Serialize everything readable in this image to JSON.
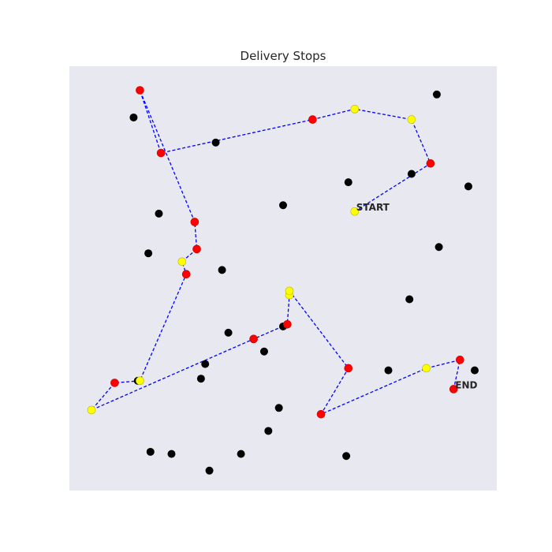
{
  "chart_data": {
    "type": "scatter",
    "title": "Delivery Stops",
    "xlabel": "",
    "ylabel": "",
    "xlim": [
      0,
      100
    ],
    "ylim": [
      0,
      100
    ],
    "grid": false,
    "legend": "none",
    "colors": {
      "plot_background": "#e8e8f0",
      "unvisited": "#000000",
      "route_stop": "#ff0000",
      "highlight_stop": "#ffff00",
      "route_line": "#0000ff"
    },
    "other_points": [
      {
        "x": 86.5,
        "y": 94.0
      },
      {
        "x": 14.5,
        "y": 88.5
      },
      {
        "x": 34.0,
        "y": 82.5
      },
      {
        "x": 80.5,
        "y": 75.0
      },
      {
        "x": 65.5,
        "y": 73.0
      },
      {
        "x": 94.0,
        "y": 72.0
      },
      {
        "x": 50.0,
        "y": 67.5
      },
      {
        "x": 20.5,
        "y": 65.5
      },
      {
        "x": 87.0,
        "y": 57.5
      },
      {
        "x": 18.0,
        "y": 56.0
      },
      {
        "x": 35.5,
        "y": 52.0
      },
      {
        "x": 80.0,
        "y": 45.0
      },
      {
        "x": 50.0,
        "y": 38.5
      },
      {
        "x": 37.0,
        "y": 37.0
      },
      {
        "x": 45.5,
        "y": 32.5
      },
      {
        "x": 31.5,
        "y": 29.5
      },
      {
        "x": 75.0,
        "y": 28.0
      },
      {
        "x": 95.5,
        "y": 28.0
      },
      {
        "x": 15.5,
        "y": 25.5
      },
      {
        "x": 30.5,
        "y": 26.0
      },
      {
        "x": 49.0,
        "y": 19.0
      },
      {
        "x": 46.5,
        "y": 13.5
      },
      {
        "x": 18.5,
        "y": 8.5
      },
      {
        "x": 23.5,
        "y": 8.0
      },
      {
        "x": 40.0,
        "y": 8.0
      },
      {
        "x": 65.0,
        "y": 7.5
      },
      {
        "x": 32.5,
        "y": 4.0
      }
    ],
    "route": [
      {
        "x": 67.0,
        "y": 66.0,
        "kind": "highlight",
        "label": "START"
      },
      {
        "x": 85.0,
        "y": 77.5,
        "kind": "stop"
      },
      {
        "x": 80.5,
        "y": 88.0,
        "kind": "highlight"
      },
      {
        "x": 67.0,
        "y": 90.5,
        "kind": "highlight"
      },
      {
        "x": 57.0,
        "y": 88.0,
        "kind": "stop"
      },
      {
        "x": 21.0,
        "y": 80.0,
        "kind": "stop"
      },
      {
        "x": 16.0,
        "y": 95.0,
        "kind": "stop"
      },
      {
        "x": 29.0,
        "y": 63.5,
        "kind": "stop"
      },
      {
        "x": 29.5,
        "y": 57.0,
        "kind": "stop"
      },
      {
        "x": 26.0,
        "y": 54.0,
        "kind": "highlight"
      },
      {
        "x": 27.0,
        "y": 51.0,
        "kind": "stop"
      },
      {
        "x": 16.0,
        "y": 25.5,
        "kind": "highlight"
      },
      {
        "x": 10.0,
        "y": 25.0,
        "kind": "stop"
      },
      {
        "x": 4.5,
        "y": 18.5,
        "kind": "highlight"
      },
      {
        "x": 43.0,
        "y": 35.5,
        "kind": "stop"
      },
      {
        "x": 51.0,
        "y": 39.0,
        "kind": "stop"
      },
      {
        "x": 51.5,
        "y": 46.0,
        "kind": "highlight"
      },
      {
        "x": 51.5,
        "y": 47.0,
        "kind": "highlight"
      },
      {
        "x": 65.5,
        "y": 28.5,
        "kind": "stop"
      },
      {
        "x": 59.0,
        "y": 17.5,
        "kind": "stop"
      },
      {
        "x": 84.0,
        "y": 28.5,
        "kind": "highlight"
      },
      {
        "x": 92.0,
        "y": 30.5,
        "kind": "stop"
      },
      {
        "x": 90.5,
        "y": 23.5,
        "kind": "stop",
        "label": "END"
      }
    ]
  }
}
